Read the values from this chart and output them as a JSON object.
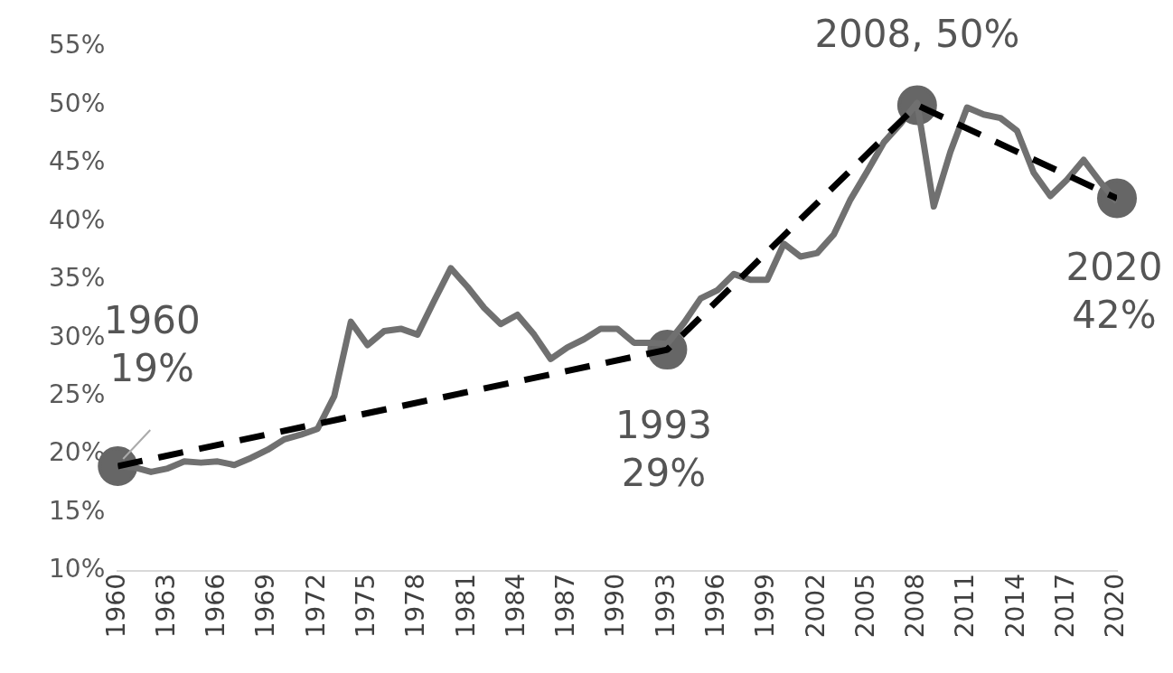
{
  "chart_data": {
    "type": "line",
    "x": [
      1960,
      1961,
      1962,
      1963,
      1964,
      1965,
      1966,
      1967,
      1968,
      1969,
      1970,
      1971,
      1972,
      1973,
      1974,
      1975,
      1976,
      1977,
      1978,
      1979,
      1980,
      1981,
      1982,
      1983,
      1984,
      1985,
      1986,
      1987,
      1988,
      1989,
      1990,
      1991,
      1992,
      1993,
      1994,
      1995,
      1996,
      1997,
      1998,
      1999,
      2000,
      2001,
      2002,
      2003,
      2004,
      2005,
      2006,
      2007,
      2008,
      2009,
      2010,
      2011,
      2012,
      2013,
      2014,
      2015,
      2016,
      2017,
      2018,
      2019,
      2020
    ],
    "series": [
      {
        "color": "#707070",
        "line_style": "solid",
        "values": [
          19.0,
          18.9,
          18.5,
          18.8,
          19.4,
          19.3,
          19.4,
          19.1,
          19.7,
          20.4,
          21.3,
          21.7,
          22.2,
          25.0,
          31.4,
          29.4,
          30.6,
          30.8,
          30.3,
          33.2,
          36.0,
          34.4,
          32.6,
          31.2,
          32.0,
          30.3,
          28.2,
          29.2,
          29.9,
          30.8,
          30.8,
          29.6,
          29.6,
          29.5,
          31.3,
          33.4,
          34.1,
          35.5,
          35.0,
          35.0,
          38.1,
          37.0,
          37.3,
          38.9,
          41.9,
          44.3,
          46.8,
          48.4,
          50.2,
          41.3,
          46.0,
          49.8,
          49.2,
          48.9,
          47.8,
          44.2,
          42.2,
          43.6,
          45.3,
          43.4,
          41.7
        ]
      },
      {
        "type": "line",
        "color": "#000000",
        "line_style": "dashed",
        "x": [
          1960,
          1993,
          2008,
          2020
        ],
        "values": [
          19,
          29,
          50,
          42
        ]
      },
      {
        "type": "scatter",
        "color": "#666666",
        "marker": "circle",
        "x": [
          1960,
          1993,
          2008,
          2020
        ],
        "values": [
          19,
          29,
          50,
          42
        ]
      }
    ],
    "xlim": [
      1960,
      2020
    ],
    "xticks": [
      1960,
      1963,
      1966,
      1969,
      1972,
      1975,
      1978,
      1981,
      1984,
      1987,
      1990,
      1993,
      1996,
      1999,
      2002,
      2005,
      2008,
      2011,
      2014,
      2017,
      2020
    ],
    "ylim": [
      10,
      55
    ],
    "yticks": [
      {
        "value": 10,
        "label": "10%"
      },
      {
        "value": 15,
        "label": "15%"
      },
      {
        "value": 20,
        "label": "20%"
      },
      {
        "value": 25,
        "label": "25%"
      },
      {
        "value": 30,
        "label": "30%"
      },
      {
        "value": 35,
        "label": "35%"
      },
      {
        "value": 40,
        "label": "40%"
      },
      {
        "value": 45,
        "label": "45%"
      },
      {
        "value": 50,
        "label": "50%"
      },
      {
        "value": 55,
        "label": "55%"
      }
    ],
    "annotations": [
      {
        "text": "1960\n19%",
        "x": 1960,
        "y": 19
      },
      {
        "text": "1993\n29%",
        "x": 1993,
        "y": 29
      },
      {
        "text": "2008, 50%",
        "x": 2008,
        "y": 50
      },
      {
        "text": "2020\n42%",
        "x": 2020,
        "y": 42
      }
    ],
    "grid": false,
    "legend": false,
    "marker": "none"
  }
}
